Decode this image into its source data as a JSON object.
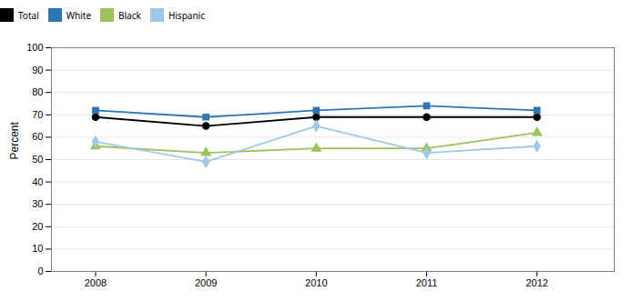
{
  "chart_data": {
    "type": "line",
    "x": [
      2008,
      2009,
      2010,
      2011,
      2012
    ],
    "series": [
      {
        "name": "Total",
        "color": "#000000",
        "marker": "circle",
        "values": [
          69,
          65,
          69,
          69,
          69
        ]
      },
      {
        "name": "White",
        "color": "#2E75B6",
        "marker": "square",
        "values": [
          72,
          69,
          72,
          74,
          72
        ]
      },
      {
        "name": "Black",
        "color": "#9DC35A",
        "marker": "triangle",
        "values": [
          56,
          53,
          55,
          55,
          62
        ]
      },
      {
        "name": "Hispanic",
        "color": "#9DC8E8",
        "marker": "diamond",
        "values": [
          58,
          49,
          65,
          53,
          56
        ]
      }
    ],
    "ylabel": "Percent",
    "ylim": [
      0,
      100
    ],
    "yticks": [
      0,
      10,
      20,
      30,
      40,
      50,
      60,
      70,
      80,
      90,
      100
    ],
    "xlim": [
      2007.6,
      2012.7
    ],
    "xticks": [
      2008,
      2009,
      2010,
      2011,
      2012
    ],
    "grid": "y",
    "legend": "top"
  }
}
